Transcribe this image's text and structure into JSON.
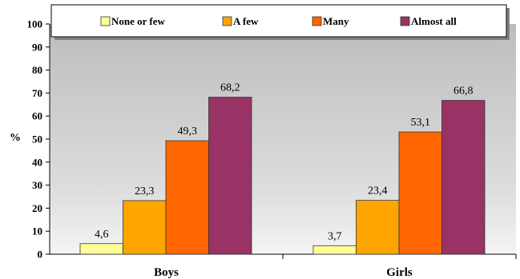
{
  "chart_data": {
    "type": "bar",
    "categories": [
      "Boys",
      "Girls"
    ],
    "series": [
      {
        "name": "None or few",
        "values": [
          4.6,
          3.7
        ],
        "labels": [
          "4,6",
          "3,7"
        ],
        "color": "#FFFF99"
      },
      {
        "name": "A few",
        "values": [
          23.3,
          23.4
        ],
        "labels": [
          "23,3",
          "23,4"
        ],
        "color": "#FFA500"
      },
      {
        "name": "Many",
        "values": [
          49.3,
          53.1
        ],
        "labels": [
          "49,3",
          "53,1"
        ],
        "color": "#FF6600"
      },
      {
        "name": "Almost all",
        "values": [
          68.2,
          66.8
        ],
        "labels": [
          "68,2",
          "66,8"
        ],
        "color": "#993366"
      }
    ],
    "ylabel": "%",
    "ylim": [
      0,
      100
    ],
    "yticks": [
      0,
      10,
      20,
      30,
      40,
      50,
      60,
      70,
      80,
      90,
      100
    ],
    "grid": false,
    "legend_position": "top",
    "plot_background": "#C0C0C0"
  }
}
